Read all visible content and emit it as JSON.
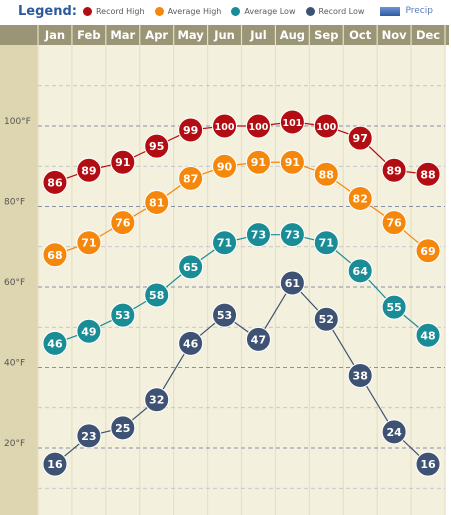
{
  "legend": {
    "title": "Legend:",
    "items": [
      {
        "label": "Record High",
        "color": "#b30d14"
      },
      {
        "label": "Average High",
        "color": "#f5870c"
      },
      {
        "label": "Average Low",
        "color": "#1a8c96"
      },
      {
        "label": "Record Low",
        "color": "#3e5373"
      }
    ],
    "precip_label": "Precip"
  },
  "chart_data": {
    "type": "line",
    "categories": [
      "Jan",
      "Feb",
      "Mar",
      "Apr",
      "May",
      "Jun",
      "Jul",
      "Aug",
      "Sep",
      "Oct",
      "Nov",
      "Dec"
    ],
    "ytick_labels": [
      "20°F",
      "40°F",
      "60°F",
      "80°F",
      "100°F"
    ],
    "ytick_values": [
      20,
      40,
      60,
      80,
      100
    ],
    "ylim": [
      5,
      115
    ],
    "grid": true,
    "series": [
      {
        "name": "Record High",
        "color": "#b30d14",
        "values": [
          86,
          89,
          91,
          95,
          99,
          100,
          100,
          101,
          100,
          97,
          89,
          88
        ]
      },
      {
        "name": "Average High",
        "color": "#f5870c",
        "values": [
          68,
          71,
          76,
          81,
          87,
          90,
          91,
          91,
          88,
          82,
          76,
          69
        ]
      },
      {
        "name": "Average Low",
        "color": "#1a8c96",
        "values": [
          46,
          49,
          53,
          58,
          65,
          71,
          73,
          73,
          71,
          64,
          55,
          48
        ]
      },
      {
        "name": "Record Low",
        "color": "#3e5373",
        "values": [
          16,
          23,
          25,
          32,
          46,
          53,
          47,
          61,
          52,
          38,
          24,
          16
        ]
      }
    ]
  }
}
